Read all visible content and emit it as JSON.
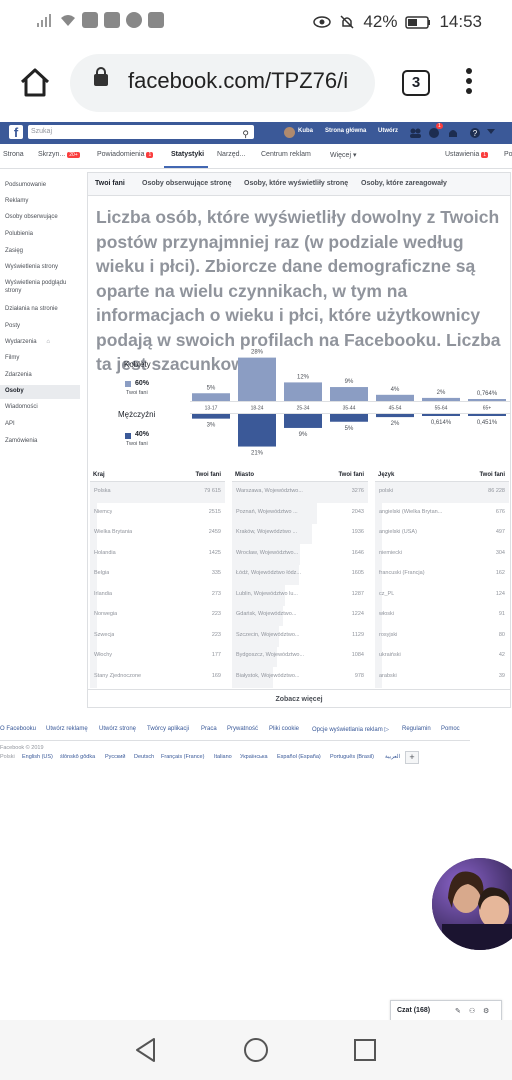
{
  "status_bar": {
    "battery": "42%",
    "time": "14:53"
  },
  "browser": {
    "url": "facebook.com/TPZ76/i",
    "tab_count": "3"
  },
  "fb_header": {
    "search_placeholder": "Szukaj",
    "user_name": "Kuba",
    "home_label": "Strona główna",
    "create_label": "Utwórz",
    "notification_count": "1"
  },
  "page_tabs": {
    "items": [
      {
        "label": "Strona",
        "badge": ""
      },
      {
        "label": "Skrzyn...",
        "badge": "20+"
      },
      {
        "label": "Powiadomienia",
        "badge": "1"
      },
      {
        "label": "Statystyki",
        "badge": ""
      },
      {
        "label": "Narzęd...",
        "badge": ""
      },
      {
        "label": "Centrum reklam",
        "badge": ""
      },
      {
        "label": "Więcej ▾",
        "badge": ""
      },
      {
        "label": "Ustawienia",
        "badge": "1"
      },
      {
        "label": "Po",
        "badge": ""
      }
    ]
  },
  "sidebar": {
    "items": [
      "Podsumowanie",
      "Reklamy",
      "Osoby obserwujące",
      "Polubienia",
      "Zasięg",
      "Wyświetlenia strony",
      "Wyświetlenia podglądu strony",
      "Działania na stronie",
      "Posty",
      "Wydarzenia",
      "Filmy",
      "Zdarzenia",
      "Osoby",
      "Wiadomości",
      "API",
      "Zamówienia"
    ]
  },
  "sub_tabs": [
    "Twoi fani",
    "Osoby obserwujące stronę",
    "Osoby, które wyświetliły stronę",
    "Osoby, które zareagowały"
  ],
  "headline": "Liczba osób, które wyświetliły dowolny z Twoich postów przynajmniej raz (w podziale według wieku i płci). Zbiorcze dane demograficzne są oparte na wielu czynnikach, w tym na informacjach o wieku i płci, które użytkownicy podają w swoich profilach na Facebooku. Liczba ta jest szacunkowa.",
  "legend": {
    "women_label": "Kobiety",
    "women_pct": "60%",
    "women_sub": "Twoi fani",
    "men_label": "Mężczyźni",
    "men_pct": "40%",
    "men_sub": "Twoi fani"
  },
  "chart_data": {
    "type": "bar",
    "categories": [
      "13-17",
      "18-24",
      "25-34",
      "35-44",
      "45-54",
      "55-64",
      "65+"
    ],
    "series": [
      {
        "name": "Kobiety",
        "values": [
          5,
          28,
          12,
          9,
          4,
          2,
          0.764
        ],
        "labels": [
          "5%",
          "28%",
          "12%",
          "9%",
          "4%",
          "2%",
          "0,764%"
        ],
        "color": "#8b9dc3"
      },
      {
        "name": "Mężczyźni",
        "values": [
          3,
          21,
          9,
          5,
          2,
          0.614,
          0.451
        ],
        "labels": [
          "3%",
          "21%",
          "9%",
          "5%",
          "2%",
          "0,614%",
          "0,451%"
        ],
        "color": "#3b5998"
      }
    ]
  },
  "tables": {
    "country": {
      "header": [
        "Kraj",
        "Twoi fani"
      ],
      "rows": [
        [
          "Polska",
          "79 615"
        ],
        [
          "Niemcy",
          "2515"
        ],
        [
          "Wielka Brytania",
          "2459"
        ],
        [
          "Holandia",
          "1425"
        ],
        [
          "Belgia",
          "335"
        ],
        [
          "Irlandia",
          "273"
        ],
        [
          "Norwegia",
          "223"
        ],
        [
          "Szwecja",
          "223"
        ],
        [
          "Włochy",
          "177"
        ],
        [
          "Stany Zjednoczone",
          "169"
        ]
      ]
    },
    "city": {
      "header": [
        "Miasto",
        "Twoi fani"
      ],
      "rows": [
        [
          "Warszawa, Województwo...",
          "3276"
        ],
        [
          "Poznań, Województwo ...",
          "2043"
        ],
        [
          "Kraków, Województwo ...",
          "1936"
        ],
        [
          "Wrocław, Województwo...",
          "1646"
        ],
        [
          "Łódź, Województwo łódz...",
          "1605"
        ],
        [
          "Lublin, Województwo lu...",
          "1287"
        ],
        [
          "Gdańsk, Województwo...",
          "1224"
        ],
        [
          "Szczecin, Województwo...",
          "1129"
        ],
        [
          "Bydgoszcz, Województwo...",
          "1084"
        ],
        [
          "Białystok, Województwo...",
          "978"
        ]
      ]
    },
    "language": {
      "header": [
        "Język",
        "Twoi fani"
      ],
      "rows": [
        [
          "polski",
          "86 228"
        ],
        [
          "angielski (Wielka Brytan...",
          "676"
        ],
        [
          "angielski (USA)",
          "497"
        ],
        [
          "niemiecki",
          "304"
        ],
        [
          "francuski (Francja)",
          "162"
        ],
        [
          "cz_PL",
          "124"
        ],
        [
          "włoski",
          "91"
        ],
        [
          "rosyjski",
          "80"
        ],
        [
          "ukraiński",
          "42"
        ],
        [
          "arabski",
          "39"
        ]
      ]
    },
    "see_more": "Zobacz więcej"
  },
  "footer": {
    "links": [
      "O Facebooku",
      "Utwórz reklamę",
      "Utwórz stronę",
      "Twórcy aplikacji",
      "Praca",
      "Prywatność",
      "Pliki cookie",
      "Opcje wyświetlania reklam",
      "Regulamin",
      "Pomoc"
    ],
    "copyright": "Facebook © 2019",
    "languages": [
      "Polski",
      "English (US)",
      "ślōnskŏ gŏdka",
      "Русский",
      "Deutsch",
      "Français (France)",
      "Italiano",
      "Українська",
      "Español (España)",
      "Português (Brasil)",
      "العربية"
    ]
  },
  "chat": {
    "label": "Czat (168)"
  }
}
